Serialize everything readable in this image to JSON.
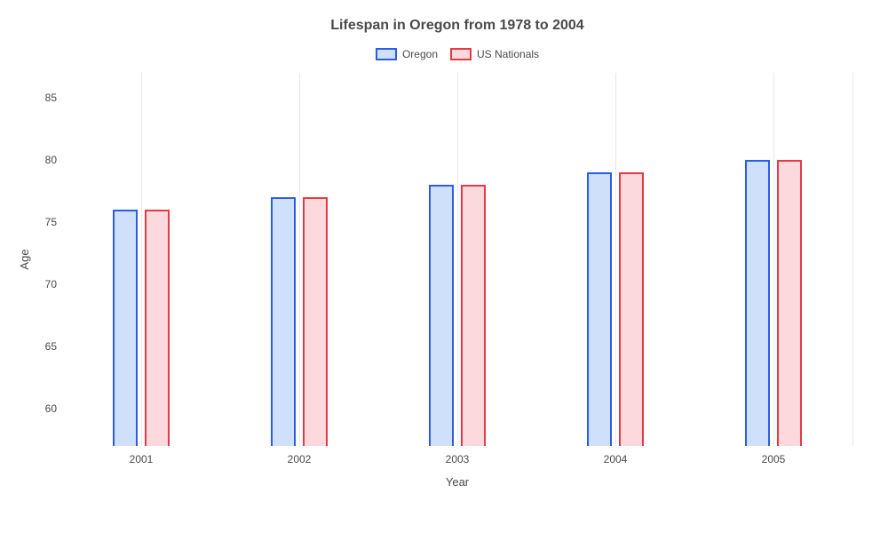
{
  "chart": {
    "type": "bar",
    "title": "Lifespan in Oregon from 1978 to 2004",
    "title_fontsize": 16,
    "title_color": "#4a4a4a",
    "background_color": "#ffffff",
    "grid_color": "#e8e8e8",
    "axis_text_color": "#4a4a4a",
    "tick_fontsize": 12,
    "label_fontsize": 13,
    "xlabel": "Year",
    "ylabel": "Age",
    "ylim": [
      57,
      87
    ],
    "yticks": [
      60,
      65,
      70,
      75,
      80,
      85
    ],
    "categories": [
      "2001",
      "2002",
      "2003",
      "2004",
      "2005"
    ],
    "series": [
      {
        "name": "Oregon",
        "stroke": "#2b5ce6",
        "fill": "#cfe0fb",
        "values": [
          76,
          77,
          78,
          79,
          80
        ]
      },
      {
        "name": "US Nationals",
        "stroke": "#e63946",
        "fill": "#fcd9dc",
        "values": [
          76,
          77,
          78,
          79,
          80
        ]
      }
    ],
    "bar_width_pct": 3.2,
    "bar_gap_pct": 0.8,
    "legend_swatch_w": 24,
    "legend_swatch_h": 14
  }
}
